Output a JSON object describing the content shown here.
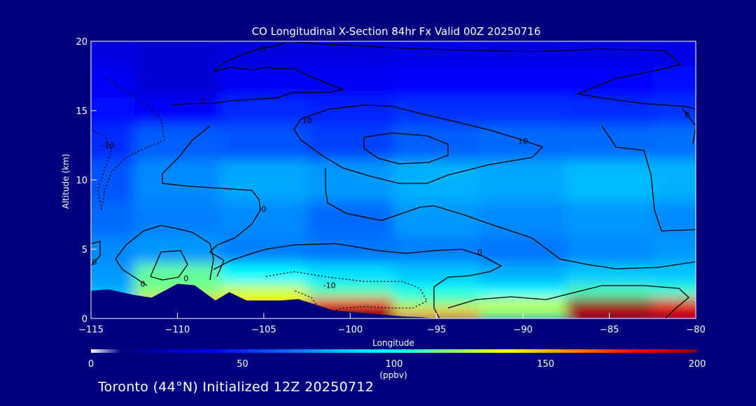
{
  "chart_data": {
    "type": "heatmap",
    "title": "CO Longitudinal X-Section 84hr  Fx Valid 00Z 20250716",
    "xlabel": "Longitude",
    "ylabel": "Altitude (km)",
    "xlim": [
      -115,
      -80
    ],
    "ylim": [
      0,
      20
    ],
    "xticks": [
      -115,
      -110,
      -105,
      -100,
      -95,
      -90,
      -85,
      -80
    ],
    "yticks": [
      0,
      5,
      10,
      15,
      20
    ],
    "grid": false,
    "colorbar": {
      "label": "(ppbv)",
      "range": [
        0,
        200
      ],
      "ticks": [
        0,
        50,
        100,
        150,
        200
      ],
      "placement": "bottom"
    },
    "field_samples": {
      "units": "ppbv",
      "longitude": [
        -115,
        -110,
        -105,
        -100,
        -95,
        -90,
        -85,
        -80
      ],
      "altitude_km": [
        0.5,
        1,
        2,
        3,
        5,
        7,
        10,
        13,
        15,
        17,
        19.5
      ],
      "values": [
        [
          100,
          165,
          150,
          200,
          150,
          120,
          190,
          185
        ],
        [
          90,
          150,
          140,
          180,
          120,
          130,
          200,
          185
        ],
        [
          80,
          120,
          130,
          110,
          100,
          95,
          110,
          105
        ],
        [
          75,
          115,
          95,
          90,
          85,
          80,
          85,
          85
        ],
        [
          72,
          75,
          70,
          68,
          70,
          68,
          72,
          75
        ],
        [
          65,
          70,
          72,
          65,
          75,
          72,
          75,
          72
        ],
        [
          60,
          72,
          78,
          75,
          80,
          78,
          82,
          80
        ],
        [
          50,
          62,
          60,
          55,
          62,
          65,
          65,
          66
        ],
        [
          42,
          40,
          50,
          48,
          52,
          52,
          50,
          52
        ],
        [
          38,
          30,
          38,
          38,
          40,
          40,
          40,
          42
        ],
        [
          32,
          30,
          32,
          32,
          34,
          34,
          34,
          34
        ]
      ]
    },
    "contour_labels": [
      {
        "text": "0",
        "lon": -105.0,
        "alt": 19.5
      },
      {
        "text": "0",
        "lon": -108.5,
        "alt": 15.7
      },
      {
        "text": "10",
        "lon": -102.5,
        "alt": 14.3
      },
      {
        "text": "10",
        "lon": -90.0,
        "alt": 12.8
      },
      {
        "text": "-10",
        "lon": -114.0,
        "alt": 12.5
      },
      {
        "text": "0",
        "lon": -105.0,
        "alt": 7.9
      },
      {
        "text": "0",
        "lon": -92.5,
        "alt": 4.8
      },
      {
        "text": "0",
        "lon": -114.8,
        "alt": 4.1
      },
      {
        "text": "0",
        "lon": -112.0,
        "alt": 2.5
      },
      {
        "text": "0",
        "lon": -109.5,
        "alt": 2.9
      },
      {
        "text": "-10",
        "lon": -101.2,
        "alt": 2.4
      },
      {
        "text": "0",
        "lon": -80.5,
        "alt": 14.7
      }
    ],
    "terrain": {
      "lon": [
        -115,
        -114,
        -112.5,
        -111.5,
        -110,
        -109,
        -107.8,
        -107,
        -106,
        -104,
        -103,
        -101,
        -97,
        -96,
        -95
      ],
      "alt_km": [
        2.0,
        2.1,
        1.7,
        1.5,
        2.5,
        2.4,
        1.3,
        1.9,
        1.3,
        1.3,
        1.4,
        0.6,
        0.15,
        0.1,
        0.0
      ]
    }
  },
  "footer": {
    "title": "Toronto (44°N) Initialized 12Z 20250712"
  }
}
